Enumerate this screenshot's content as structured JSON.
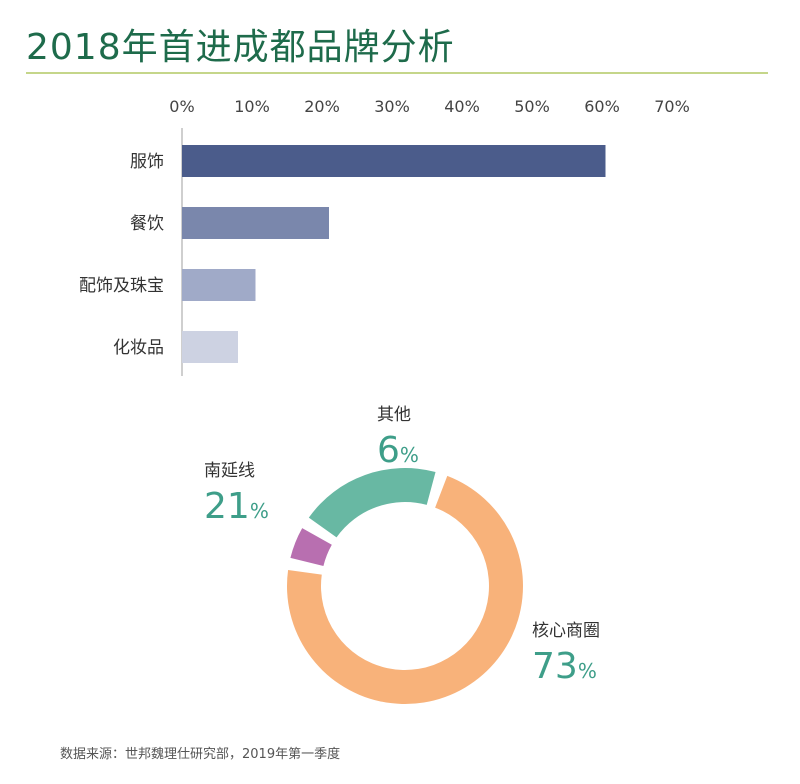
{
  "page_title": "2018年首进成都品牌分析",
  "source": "数据来源：世邦魏理仕研究部，2019年第一季度",
  "chart_data": [
    {
      "type": "bar",
      "orientation": "horizontal",
      "categories": [
        "服饰",
        "餐饮",
        "配饰及珠宝",
        "化妆品"
      ],
      "values": [
        60.5,
        21,
        10.5,
        8
      ],
      "colors": [
        "#4b5c8b",
        "#7a87ac",
        "#a0aac8",
        "#cdd2e2"
      ],
      "xlim": [
        0,
        70
      ],
      "x_ticks": [
        0,
        10,
        20,
        30,
        40,
        50,
        60,
        70
      ],
      "x_tick_labels": [
        "0%",
        "10%",
        "20%",
        "30%",
        "40%",
        "50%",
        "60%",
        "70%"
      ],
      "axis_position": "top",
      "grid": false
    },
    {
      "type": "pie",
      "style": "donut",
      "slices": [
        {
          "label": "核心商圈",
          "value": 73,
          "value_text": "73",
          "unit": "%",
          "color": "#f8b27a"
        },
        {
          "label": "其他",
          "value": 6,
          "value_text": "6",
          "unit": "%",
          "color": "#b86fb0"
        },
        {
          "label": "南延线",
          "value": 21,
          "value_text": "21",
          "unit": "%",
          "color": "#68b8a3"
        }
      ],
      "value_label_color": "#3e9e89"
    }
  ]
}
